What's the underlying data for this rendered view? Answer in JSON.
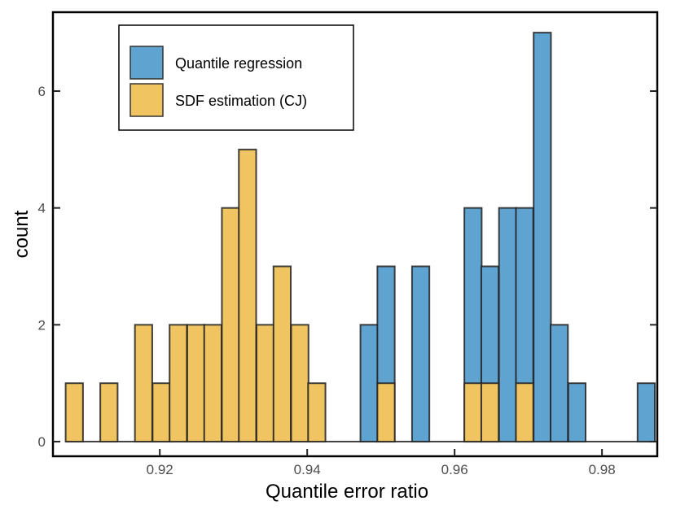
{
  "chart_data": {
    "type": "bar",
    "subtype": "overlaid-histogram",
    "title": "",
    "xlabel": "Quantile error ratio",
    "ylabel": "count",
    "xlim": [
      0.9055,
      0.9875
    ],
    "ylim": [
      -0.25,
      7.35
    ],
    "bin_width": 0.00235,
    "x_ticks": [
      {
        "value": 0.92,
        "label": "0.92"
      },
      {
        "value": 0.94,
        "label": "0.94"
      },
      {
        "value": 0.96,
        "label": "0.96"
      },
      {
        "value": 0.98,
        "label": "0.98"
      }
    ],
    "y_ticks": [
      {
        "value": 0,
        "label": "0"
      },
      {
        "value": 2,
        "label": "2"
      },
      {
        "value": 4,
        "label": "4"
      },
      {
        "value": 6,
        "label": "6"
      }
    ],
    "legend_position": "top-left",
    "series": [
      {
        "name": "Quantile regression",
        "color": "#5fa3d1",
        "bin_centers": [
          0.9484,
          0.9507,
          0.9554,
          0.9625,
          0.9648,
          0.9672,
          0.9695,
          0.9719,
          0.9742,
          0.9766,
          0.986
        ],
        "counts": [
          2,
          3,
          3,
          4,
          3,
          4,
          4,
          7,
          2,
          1,
          1
        ]
      },
      {
        "name": "SDF estimation (CJ)",
        "color": "#f0c460",
        "bin_centers": [
          0.9084,
          0.9131,
          0.9178,
          0.9202,
          0.9225,
          0.9249,
          0.9272,
          0.9296,
          0.9319,
          0.9343,
          0.9366,
          0.939,
          0.9413,
          0.9507,
          0.9625,
          0.9648,
          0.9695
        ],
        "counts": [
          1,
          1,
          2,
          1,
          2,
          2,
          2,
          4,
          5,
          2,
          3,
          2,
          1,
          1,
          1,
          1,
          1
        ]
      }
    ]
  }
}
